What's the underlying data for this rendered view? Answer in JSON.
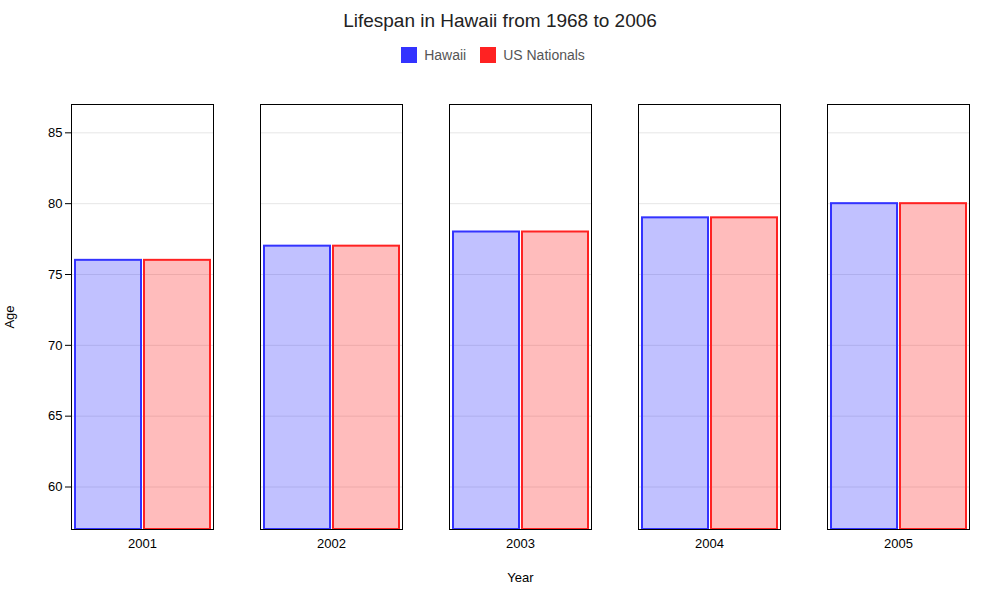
{
  "chart_data": {
    "type": "bar",
    "title": "Lifespan in Hawaii from 1968 to 2006",
    "xlabel": "Year",
    "ylabel": "Age",
    "categories": [
      "2001",
      "2002",
      "2003",
      "2004",
      "2005"
    ],
    "series": [
      {
        "name": "Hawaii",
        "color": "#3333ff",
        "values": [
          76,
          77,
          78,
          79,
          80
        ]
      },
      {
        "name": "US Nationals",
        "color": "#ff2222",
        "values": [
          76,
          77,
          78,
          79,
          80
        ]
      }
    ],
    "ylim": [
      57,
      87
    ],
    "yticks": [
      60,
      65,
      70,
      75,
      80,
      85
    ],
    "grid": true,
    "legend": "top"
  }
}
